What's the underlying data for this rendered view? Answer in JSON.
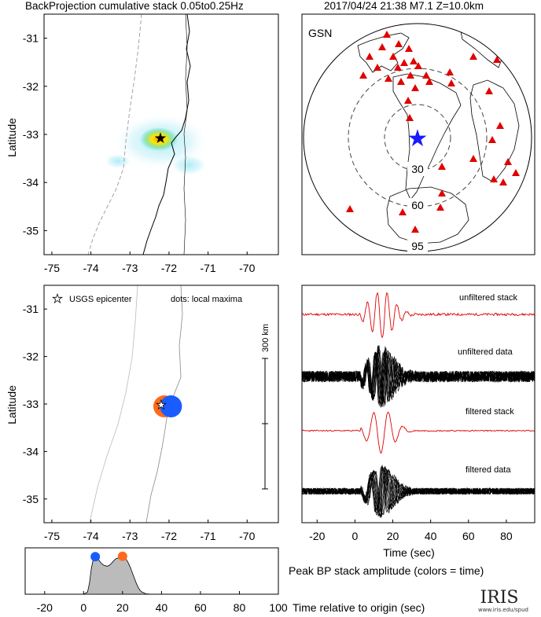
{
  "header": {
    "left_title": "BackProjection cumulative stack 0.05to0.25Hz",
    "right_title": "2017/04/24 21:38  M7.1  Z=10.0km"
  },
  "chart_data": [
    {
      "id": "bp_map",
      "type": "heatmap",
      "ylabel": "Latitude",
      "xlim": [
        -75.2,
        -69.2
      ],
      "ylim": [
        -35.5,
        -30.5
      ],
      "xticks": [
        -75,
        -74,
        -73,
        -72,
        -71,
        -70
      ],
      "yticks": [
        -31,
        -32,
        -33,
        -34,
        -35
      ],
      "epicenter": {
        "lon": -72.0,
        "lat": -33.05
      },
      "peak": {
        "lon": -72.1,
        "lat": -33.1
      }
    },
    {
      "id": "station_map",
      "type": "scatter",
      "network_label": "GSN",
      "ring_labels": [
        "30",
        "60",
        "95"
      ],
      "marker_color": "#e00000",
      "epicenter_color": "#1a1aff"
    },
    {
      "id": "maxima_map",
      "type": "scatter",
      "ylabel": "Latitude",
      "legend_epicenter": "USGS epicenter",
      "legend_dots": "dots: local maxima",
      "scale_label": "300 km",
      "xlim": [
        -75.2,
        -69.2
      ],
      "ylim": [
        -35.5,
        -30.5
      ],
      "xticks": [
        -75,
        -74,
        -73,
        -72,
        -71,
        -70
      ],
      "yticks": [
        -31,
        -32,
        -33,
        -34,
        -35
      ],
      "maxima": [
        {
          "lon": -72.12,
          "lat": -33.05,
          "color": "#ff6a1a"
        },
        {
          "lon": -71.95,
          "lat": -33.05,
          "color": "#1a5cff"
        }
      ],
      "epicenter": {
        "lon": -72.0,
        "lat": -33.05
      }
    },
    {
      "id": "traces",
      "type": "line",
      "xlabel": "Time (sec)",
      "xlim": [
        -28,
        95
      ],
      "xticks": [
        -20,
        0,
        20,
        40,
        60,
        80
      ],
      "labels": [
        "unfiltered stack",
        "unfiltered data",
        "filtered stack",
        "filtered data"
      ],
      "stack_color": "#e00000"
    },
    {
      "id": "amplitude",
      "type": "area",
      "xlabel": "Time relative to origin (sec)",
      "title": "Peak BP stack amplitude (colors = time)",
      "xlim": [
        -30,
        100
      ],
      "xticks": [
        -20,
        0,
        20,
        40,
        60,
        80,
        100
      ],
      "x": [
        -30,
        0,
        2,
        3,
        4,
        5,
        6,
        7,
        8,
        9,
        10,
        11,
        12,
        13,
        14,
        15,
        16,
        17,
        18,
        19,
        20,
        21,
        22,
        23,
        24,
        25,
        26,
        27,
        28,
        29,
        30,
        31,
        32,
        33,
        34,
        35,
        100
      ],
      "y": [
        0,
        0,
        0.05,
        0.25,
        0.6,
        0.82,
        0.85,
        0.84,
        0.78,
        0.72,
        0.68,
        0.66,
        0.65,
        0.66,
        0.7,
        0.75,
        0.8,
        0.83,
        0.84,
        0.85,
        0.86,
        0.84,
        0.8,
        0.72,
        0.62,
        0.5,
        0.38,
        0.26,
        0.16,
        0.09,
        0.05,
        0.03,
        0.01,
        0.005,
        0.002,
        0,
        0
      ],
      "peaks": [
        {
          "x": 6,
          "color": "#1a5cff"
        },
        {
          "x": 20,
          "color": "#ff6a1a"
        }
      ]
    }
  ],
  "logo": {
    "text": "IRIS",
    "url": "www.iris.edu/spud"
  }
}
